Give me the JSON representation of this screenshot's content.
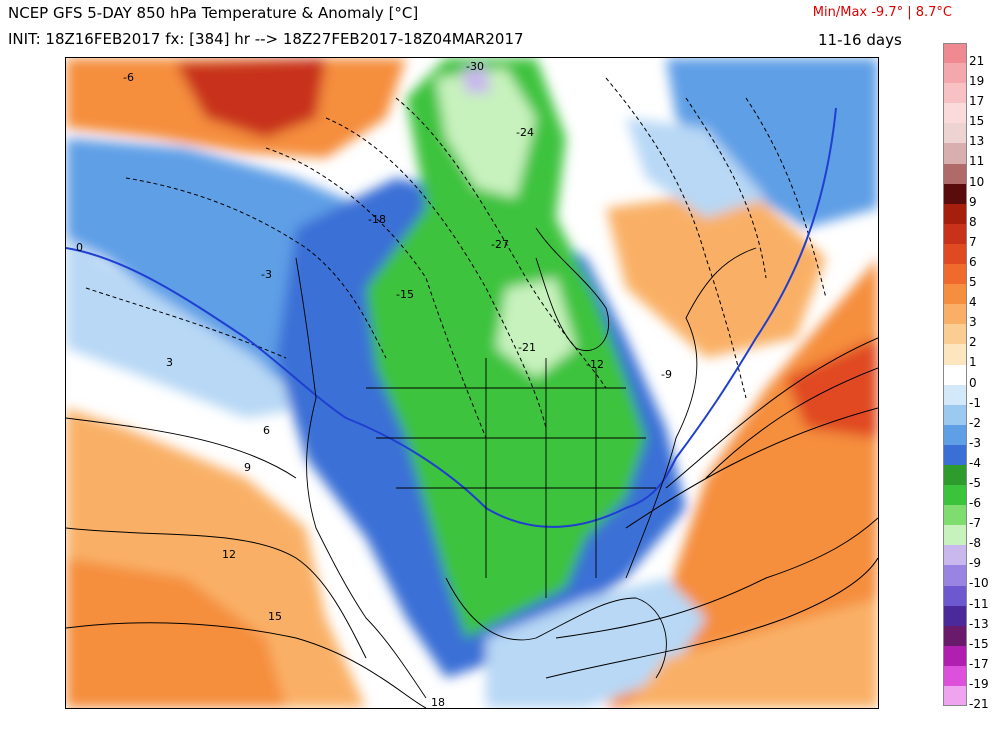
{
  "header": {
    "title": "NCEP GFS 5-DAY 850 hPa Temperature & Anomaly [°C]",
    "init": "INIT: 18Z16FEB2017 fx: [384] hr --> 18Z27FEB2017-18Z04MAR2017",
    "minmax": "Min/Max -9.7° | 8.7°C",
    "period": "11-16 days"
  },
  "colors": {
    "strong_warm": "#a61f0d",
    "warm": "#f57a3c",
    "mild_warm": "#fbd3a0",
    "neutral": "#ffffff",
    "mild_cold": "#b8d8f5",
    "cold": "#3c78e0",
    "very_cold": "#2db84a",
    "extreme_cold": "#d8f5cf",
    "zero_line": "#1f3fd0"
  },
  "contour_labels": [
    "-30",
    "-27",
    "-24",
    "-21",
    "-18",
    "-15",
    "-12",
    "-9",
    "-6",
    "-3",
    "0",
    "3",
    "6",
    "9",
    "12",
    "15",
    "18"
  ],
  "colorbar": [
    {
      "label": "21",
      "color": "#f08a92"
    },
    {
      "label": "19",
      "color": "#f4a8ad"
    },
    {
      "label": "17",
      "color": "#f8c2c5"
    },
    {
      "label": "15",
      "color": "#fbdadc"
    },
    {
      "label": "13",
      "color": "#eed3d3"
    },
    {
      "label": "11",
      "color": "#d8aeae"
    },
    {
      "label": "10",
      "color": "#b06a6a"
    },
    {
      "label": "9",
      "color": "#5a0c0c"
    },
    {
      "label": "8",
      "color": "#a61f0d"
    },
    {
      "label": "7",
      "color": "#c8321a"
    },
    {
      "label": "6",
      "color": "#e04a22"
    },
    {
      "label": "5",
      "color": "#ef6a2c"
    },
    {
      "label": "4",
      "color": "#f58e3e"
    },
    {
      "label": "3",
      "color": "#f9b066"
    },
    {
      "label": "2",
      "color": "#fbcd92"
    },
    {
      "label": "1",
      "color": "#fde6bf"
    },
    {
      "label": "0",
      "color": "#ffffff"
    },
    {
      "label": "-1",
      "color": "#d3e8f8"
    },
    {
      "label": "-2",
      "color": "#9cc9f0"
    },
    {
      "label": "-3",
      "color": "#5f9fe6"
    },
    {
      "label": "-4",
      "color": "#3a6fd6"
    },
    {
      "label": "-5",
      "color": "#2d9c2d"
    },
    {
      "label": "-6",
      "color": "#3cc33c"
    },
    {
      "label": "-7",
      "color": "#7fdc6f"
    },
    {
      "label": "-8",
      "color": "#c7f2bd"
    },
    {
      "label": "-9",
      "color": "#c9b8ee"
    },
    {
      "label": "-10",
      "color": "#9a84e2"
    },
    {
      "label": "-11",
      "color": "#6d58cf"
    },
    {
      "label": "-13",
      "color": "#4a2a9a"
    },
    {
      "label": "-15",
      "color": "#6a1a6a"
    },
    {
      "label": "-17",
      "color": "#b01fb0"
    },
    {
      "label": "-19",
      "color": "#dc50dc"
    },
    {
      "label": "-21",
      "color": "#f0a4f0"
    }
  ]
}
